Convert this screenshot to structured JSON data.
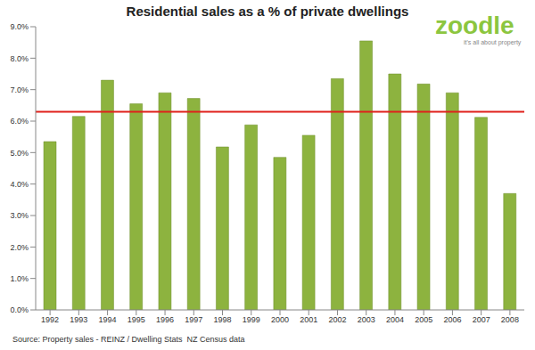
{
  "chart_data": {
    "type": "bar",
    "title": "Residential sales as a % of private dwellings",
    "categories": [
      "1992",
      "1993",
      "1994",
      "1995",
      "1996",
      "1997",
      "1998",
      "1999",
      "2000",
      "2001",
      "2002",
      "2003",
      "2004",
      "2005",
      "2006",
      "2007",
      "2008"
    ],
    "values": [
      5.35,
      6.15,
      7.3,
      6.55,
      6.9,
      6.72,
      5.18,
      5.88,
      4.85,
      5.55,
      7.35,
      8.55,
      7.5,
      7.18,
      6.9,
      6.12,
      3.7
    ],
    "color": "#8db33f",
    "reference_line": 6.3,
    "ylim": [
      0,
      9
    ],
    "yticks": [
      {
        "value": 0,
        "label": "0.0%"
      },
      {
        "value": 1,
        "label": "1.0%"
      },
      {
        "value": 2,
        "label": "2.0%"
      },
      {
        "value": 3,
        "label": "3.0%"
      },
      {
        "value": 4,
        "label": "4.0%"
      },
      {
        "value": 5,
        "label": "5.0%"
      },
      {
        "value": 6,
        "label": "6.0%"
      },
      {
        "value": 7,
        "label": "7.0%"
      },
      {
        "value": 8,
        "label": "8.0%"
      },
      {
        "value": 9,
        "label": "9.0%"
      }
    ],
    "grid": false,
    "source": "Source: Property sales - REINZ / Dwelling Stats  NZ Census data",
    "logo": "zoodle",
    "tagline": "it's all about property"
  }
}
